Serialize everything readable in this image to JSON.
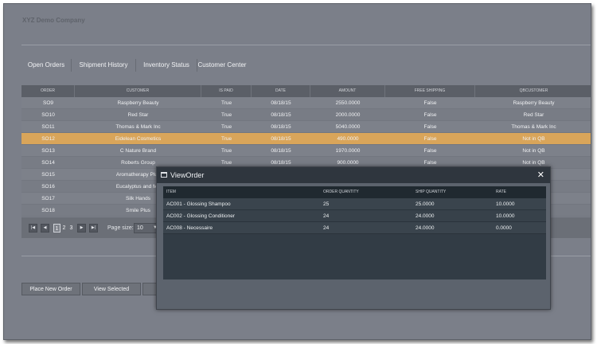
{
  "company_name": "XYZ Demo Company",
  "tabs": [
    "Open Orders",
    "Shipment History",
    "Inventory Status",
    "Customer Center"
  ],
  "grid": {
    "columns": [
      "ORDER",
      "CUSTOMER",
      "IS PAID",
      "DATE",
      "AMOUNT",
      "FREE SHIPPING",
      "QBCUSTOMER"
    ],
    "rows": [
      [
        "SO9",
        "Raspberry Beauty",
        "True",
        "08/18/15",
        "2550.0000",
        "False",
        "Raspberry Beauty"
      ],
      [
        "SO10",
        "Red Star",
        "True",
        "08/18/15",
        "2000.0000",
        "False",
        "Red Star"
      ],
      [
        "SO11",
        "Thomas & Mark Inc",
        "True",
        "08/18/15",
        "5040.0000",
        "False",
        "Thomas & Mark Inc"
      ],
      [
        "SO12",
        "Eidelean Cosmetics",
        "True",
        "08/18/15",
        "490.0000",
        "False",
        "Not in QB"
      ],
      [
        "SO13",
        "C Nature Brand",
        "True",
        "08/18/15",
        "1970.0000",
        "False",
        "Not in QB"
      ],
      [
        "SO14",
        "Roberts Group",
        "True",
        "08/18/15",
        "900.0000",
        "False",
        "Not in QB"
      ],
      [
        "SO15",
        "Aromatherapy Plus",
        "",
        "",
        "",
        "",
        ""
      ],
      [
        "SO16",
        "Eucalyptus and Mo",
        "",
        "",
        "",
        "",
        ""
      ],
      [
        "SO17",
        "Silk Hands",
        "",
        "",
        "",
        "",
        ""
      ],
      [
        "SO18",
        "Smile Plus",
        "",
        "",
        "",
        "",
        ""
      ]
    ],
    "selected_row": 3
  },
  "pager": {
    "pages": [
      "1",
      "2",
      "3"
    ],
    "current_page": "1",
    "page_size_label": "Page size:",
    "page_size_value": "10"
  },
  "buttons": {
    "place_new_order": "Place New Order",
    "view_selected": "View Selected"
  },
  "modal": {
    "title": "ViewOrder",
    "close_glyph": "✕",
    "columns": [
      "ITEM",
      "ORDER QUANTITY",
      "SHIP QUANTITY",
      "RATE"
    ],
    "rows": [
      [
        "AC001 - Glossing Shampoo",
        "25",
        "25.0000",
        "10.0000"
      ],
      [
        "AC002 - Glossing Conditioner",
        "24",
        "24.0000",
        "10.0000"
      ],
      [
        "AC008 - Necessaire",
        "24",
        "24.0000",
        "0.0000"
      ]
    ]
  },
  "colors": {
    "background": "#7b7f89",
    "selected_row": "#d9a55a",
    "modal_title_bar": "#2f363e",
    "modal_body": "#323c45"
  },
  "icons": {
    "first_page": "first-page-icon",
    "prev_page": "prev-page-icon",
    "next_page": "next-page-icon",
    "last_page": "last-page-icon",
    "dropdown": "chevron-down-icon",
    "window": "window-icon",
    "close": "close-icon"
  }
}
